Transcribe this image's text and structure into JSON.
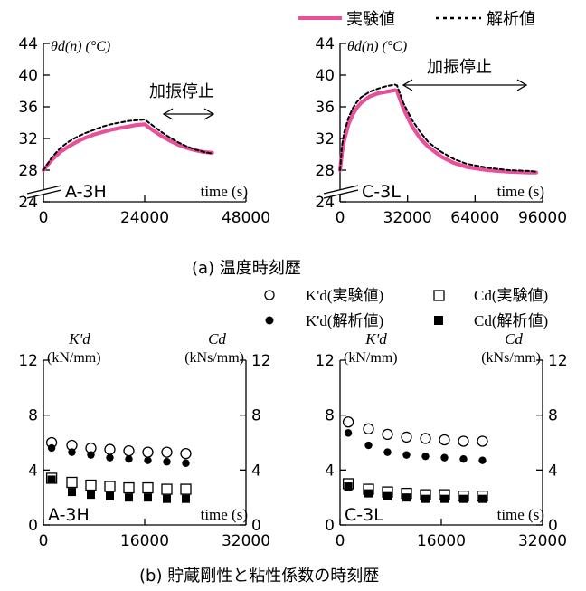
{
  "legend_top": {
    "exp": "実験値",
    "ana": "解析値"
  },
  "legend_bottom": {
    "k_exp": "K'd(実験値)",
    "c_exp": "Cd(実験値)",
    "k_ana": "K'd(解析値)",
    "c_ana": "Cd(解析値)"
  },
  "captions": {
    "a": "(a)   温度時刻歴",
    "b": "(b)   貯蔵剛性と粘性係数の時刻歴"
  },
  "colors": {
    "experiment_line": "#e8509b",
    "analysis_line": "#000000",
    "axis": "#000000"
  },
  "chart_data": [
    {
      "id": "temp_A3H",
      "type": "line",
      "ylabel": "θd(n) (°C)",
      "xlabel": "time (s)",
      "label": "A-3H",
      "annotation": "加振停止",
      "xlim": [
        0,
        48000
      ],
      "ylim": [
        24,
        44
      ],
      "xticks": [
        0,
        24000,
        48000
      ],
      "yticks": [
        24,
        28,
        32,
        36,
        40,
        44
      ],
      "series": [
        {
          "name": "実験値",
          "style": "solid",
          "points": [
            [
              0,
              28.0
            ],
            [
              2000,
              29.3
            ],
            [
              4000,
              30.3
            ],
            [
              6000,
              31.0
            ],
            [
              8000,
              31.6
            ],
            [
              10000,
              32.1
            ],
            [
              12000,
              32.5
            ],
            [
              14000,
              32.8
            ],
            [
              16000,
              33.1
            ],
            [
              18000,
              33.3
            ],
            [
              20000,
              33.5
            ],
            [
              22000,
              33.7
            ],
            [
              24000,
              33.8
            ],
            [
              25500,
              33.2
            ],
            [
              28000,
              32.3
            ],
            [
              30000,
              31.7
            ],
            [
              32000,
              31.2
            ],
            [
              34000,
              30.8
            ],
            [
              36000,
              30.5
            ],
            [
              38000,
              30.3
            ],
            [
              40000,
              30.2
            ]
          ]
        },
        {
          "name": "解析値",
          "style": "dashed",
          "points": [
            [
              0,
              28.0
            ],
            [
              2000,
              29.6
            ],
            [
              4000,
              30.8
            ],
            [
              6000,
              31.6
            ],
            [
              8000,
              32.2
            ],
            [
              10000,
              32.7
            ],
            [
              12000,
              33.1
            ],
            [
              14000,
              33.5
            ],
            [
              16000,
              33.8
            ],
            [
              18000,
              34.0
            ],
            [
              20000,
              34.2
            ],
            [
              22000,
              34.3
            ],
            [
              24000,
              34.4
            ],
            [
              25500,
              33.8
            ],
            [
              28000,
              32.8
            ],
            [
              30000,
              32.1
            ],
            [
              32000,
              31.5
            ],
            [
              34000,
              31.0
            ],
            [
              36000,
              30.6
            ],
            [
              38000,
              30.3
            ],
            [
              40000,
              30.1
            ]
          ]
        }
      ]
    },
    {
      "id": "temp_C3L",
      "type": "line",
      "ylabel": "θd(n) (°C)",
      "xlabel": "time (s)",
      "label": "C-3L",
      "annotation": "加振停止",
      "xlim": [
        0,
        96000
      ],
      "ylim": [
        24,
        44
      ],
      "xticks": [
        0,
        32000,
        64000,
        96000
      ],
      "yticks": [
        24,
        28,
        32,
        36,
        40,
        44
      ],
      "series": [
        {
          "name": "実験値",
          "style": "solid",
          "points": [
            [
              0,
              28.0
            ],
            [
              1000,
              30.3
            ],
            [
              2000,
              31.8
            ],
            [
              4000,
              33.8
            ],
            [
              6000,
              35.0
            ],
            [
              8000,
              35.9
            ],
            [
              10000,
              36.5
            ],
            [
              14000,
              37.3
            ],
            [
              18000,
              37.7
            ],
            [
              22000,
              37.9
            ],
            [
              26000,
              38.1
            ],
            [
              27000,
              38.0
            ],
            [
              30000,
              35.8
            ],
            [
              34000,
              33.6
            ],
            [
              38000,
              32.0
            ],
            [
              42000,
              30.9
            ],
            [
              48000,
              29.7
            ],
            [
              54000,
              28.9
            ],
            [
              60000,
              28.4
            ],
            [
              70000,
              28.0
            ],
            [
              80000,
              27.8
            ],
            [
              90000,
              27.7
            ],
            [
              93000,
              27.7
            ]
          ]
        },
        {
          "name": "解析値",
          "style": "dashed",
          "points": [
            [
              0,
              28.0
            ],
            [
              1000,
              31.2
            ],
            [
              2000,
              32.8
            ],
            [
              4000,
              34.6
            ],
            [
              6000,
              35.8
            ],
            [
              8000,
              36.6
            ],
            [
              10000,
              37.2
            ],
            [
              14000,
              37.9
            ],
            [
              18000,
              38.3
            ],
            [
              22000,
              38.6
            ],
            [
              26000,
              38.8
            ],
            [
              27000,
              38.7
            ],
            [
              30000,
              36.5
            ],
            [
              34000,
              34.4
            ],
            [
              38000,
              32.8
            ],
            [
              42000,
              31.5
            ],
            [
              48000,
              30.3
            ],
            [
              54000,
              29.4
            ],
            [
              60000,
              28.8
            ],
            [
              70000,
              28.3
            ],
            [
              80000,
              28.0
            ],
            [
              90000,
              27.9
            ],
            [
              93000,
              27.8
            ]
          ]
        }
      ]
    },
    {
      "id": "stiff_A3H",
      "type": "scatter",
      "ylabel": "K'd",
      "ylabel_unit": "(kN/mm)",
      "ylabel_right": "Cd",
      "ylabel_right_unit": "(kNs/mm)",
      "xlabel": "time (s)",
      "label": "A-3H",
      "xlim": [
        0,
        32000
      ],
      "ylim": [
        0,
        12
      ],
      "xticks": [
        0,
        16000,
        32000
      ],
      "yticks": [
        0,
        4,
        8,
        12
      ],
      "series": [
        {
          "name": "K'd(実験値)",
          "marker": "open-circle",
          "points": [
            [
              1300,
              6.0
            ],
            [
              4500,
              5.8
            ],
            [
              7500,
              5.6
            ],
            [
              10500,
              5.5
            ],
            [
              13500,
              5.4
            ],
            [
              16500,
              5.3
            ],
            [
              19500,
              5.3
            ],
            [
              22500,
              5.2
            ]
          ]
        },
        {
          "name": "K'd(解析値)",
          "marker": "filled-circle",
          "points": [
            [
              1300,
              5.6
            ],
            [
              4500,
              5.3
            ],
            [
              7500,
              5.1
            ],
            [
              10500,
              4.9
            ],
            [
              13500,
              4.8
            ],
            [
              16500,
              4.7
            ],
            [
              19500,
              4.6
            ],
            [
              22500,
              4.5
            ]
          ]
        },
        {
          "name": "Cd(実験値)",
          "marker": "open-square",
          "points": [
            [
              1300,
              3.4
            ],
            [
              4500,
              3.1
            ],
            [
              7500,
              2.9
            ],
            [
              10500,
              2.8
            ],
            [
              13500,
              2.7
            ],
            [
              16500,
              2.7
            ],
            [
              19500,
              2.6
            ],
            [
              22500,
              2.6
            ]
          ]
        },
        {
          "name": "Cd(解析値)",
          "marker": "filled-square",
          "points": [
            [
              1300,
              3.3
            ],
            [
              4500,
              2.4
            ],
            [
              7500,
              2.2
            ],
            [
              10500,
              2.1
            ],
            [
              13500,
              2.0
            ],
            [
              16500,
              2.0
            ],
            [
              19500,
              1.9
            ],
            [
              22500,
              1.9
            ]
          ]
        }
      ]
    },
    {
      "id": "stiff_C3L",
      "type": "scatter",
      "ylabel": "K'd",
      "ylabel_unit": "(kN/mm)",
      "ylabel_right": "Cd",
      "ylabel_right_unit": "(kNs/mm)",
      "xlabel": "time (s)",
      "label": "C-3L",
      "xlim": [
        0,
        32000
      ],
      "ylim": [
        0,
        12
      ],
      "xticks": [
        0,
        16000,
        32000
      ],
      "yticks": [
        0,
        4,
        8,
        12
      ],
      "series": [
        {
          "name": "K'd(実験値)",
          "marker": "open-circle",
          "points": [
            [
              1300,
              7.5
            ],
            [
              4500,
              7.0
            ],
            [
              7500,
              6.6
            ],
            [
              10500,
              6.4
            ],
            [
              13500,
              6.3
            ],
            [
              16500,
              6.2
            ],
            [
              19500,
              6.1
            ],
            [
              22500,
              6.1
            ]
          ]
        },
        {
          "name": "K'd(解析値)",
          "marker": "filled-circle",
          "points": [
            [
              1300,
              6.7
            ],
            [
              4500,
              5.8
            ],
            [
              7500,
              5.3
            ],
            [
              10500,
              5.1
            ],
            [
              13500,
              5.0
            ],
            [
              16500,
              4.9
            ],
            [
              19500,
              4.8
            ],
            [
              22500,
              4.7
            ]
          ]
        },
        {
          "name": "Cd(実験値)",
          "marker": "open-square",
          "points": [
            [
              1300,
              3.0
            ],
            [
              4500,
              2.6
            ],
            [
              7500,
              2.4
            ],
            [
              10500,
              2.3
            ],
            [
              13500,
              2.2
            ],
            [
              16500,
              2.2
            ],
            [
              19500,
              2.1
            ],
            [
              22500,
              2.1
            ]
          ]
        },
        {
          "name": "Cd(解析値)",
          "marker": "filled-square",
          "points": [
            [
              1300,
              2.8
            ],
            [
              4500,
              2.3
            ],
            [
              7500,
              2.1
            ],
            [
              10500,
              2.0
            ],
            [
              13500,
              1.9
            ],
            [
              16500,
              1.9
            ],
            [
              19500,
              1.9
            ],
            [
              22500,
              1.9
            ]
          ]
        }
      ]
    }
  ]
}
